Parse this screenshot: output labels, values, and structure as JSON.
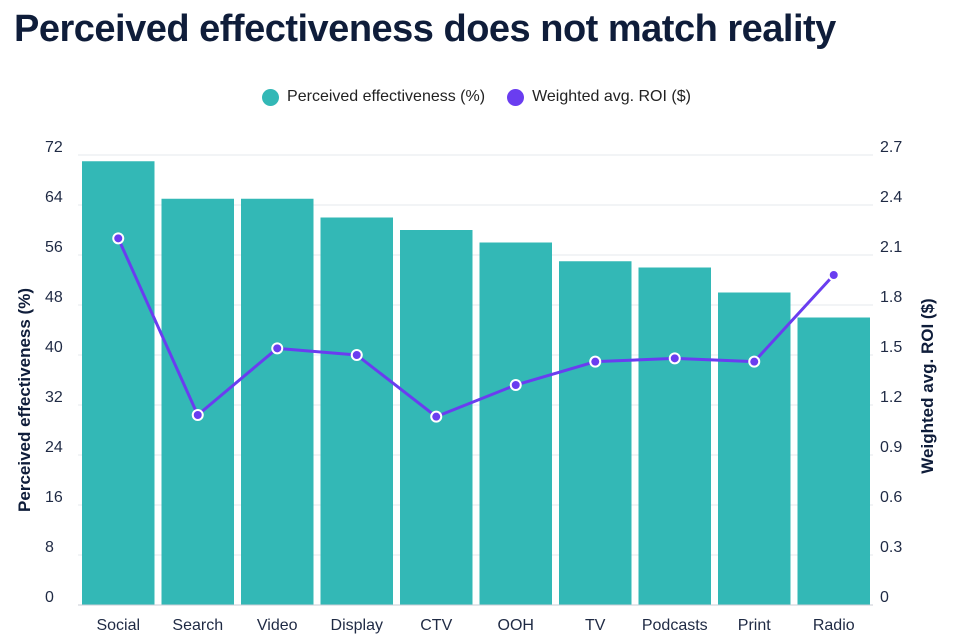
{
  "title": "Perceived effectiveness does not match reality",
  "legend": [
    {
      "label": "Perceived effectiveness (%)",
      "color": "#33b8b6"
    },
    {
      "label": "Weighted avg. ROI ($)",
      "color": "#6a3df0"
    }
  ],
  "chart_data": {
    "type": "bar",
    "title": "Perceived effectiveness does not match reality",
    "categories": [
      "Social",
      "Search",
      "Video",
      "Display",
      "CTV",
      "OOH",
      "TV",
      "Podcasts",
      "Print",
      "Radio"
    ],
    "series": [
      {
        "name": "Perceived effectiveness (%)",
        "type": "bar",
        "axis": "left",
        "color": "#33b8b6",
        "values": [
          71,
          65,
          65,
          62,
          60,
          58,
          55,
          54,
          50,
          46
        ]
      },
      {
        "name": "Weighted avg. ROI ($)",
        "type": "line",
        "axis": "right",
        "color": "#6a3df0",
        "values": [
          2.2,
          1.14,
          1.54,
          1.5,
          1.13,
          1.32,
          1.46,
          1.48,
          1.46,
          1.98
        ]
      }
    ],
    "ylabel": "Perceived effectiveness (%)",
    "y2label": "Weighted avg. ROI ($)",
    "ylim": [
      0,
      72
    ],
    "y2lim": [
      0,
      2.7
    ],
    "yticks": [
      "0",
      "8",
      "16",
      "24",
      "32",
      "40",
      "48",
      "56",
      "64",
      "72"
    ],
    "y2ticks": [
      "0",
      "0.3",
      "0.6",
      "0.9",
      "1.2",
      "1.5",
      "1.8",
      "2.1",
      "2.4",
      "2.7"
    ],
    "grid": true,
    "legend_position": "top-center"
  }
}
